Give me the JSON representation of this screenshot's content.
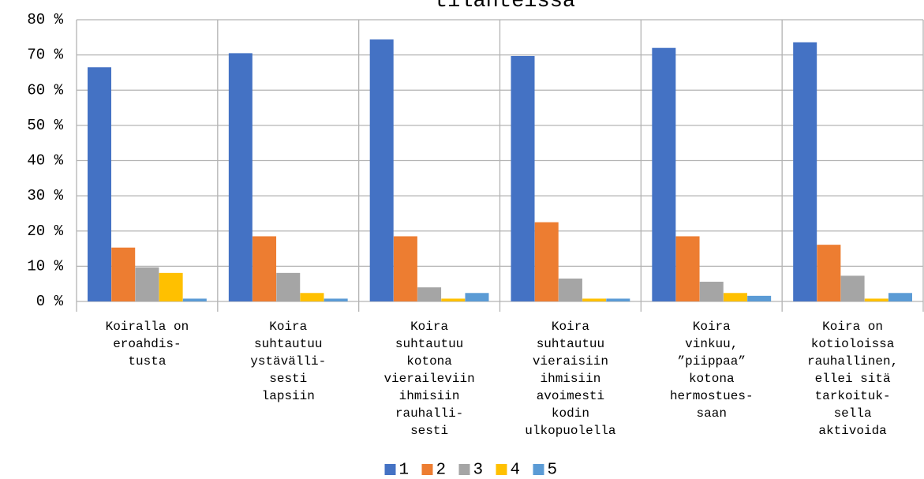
{
  "chart_data": {
    "type": "bar",
    "title": "tilanteissa",
    "categories": [
      [
        "Koiralla on",
        "eroahdis-",
        "tusta"
      ],
      [
        "Koira",
        "suhtautuu",
        "ystävälli-",
        "sesti",
        "lapsiin"
      ],
      [
        "Koira",
        "suhtautuu",
        "kotona",
        "vieraileviin",
        "ihmisiin",
        "rauhalli-",
        "sesti"
      ],
      [
        "Koira",
        "suhtautuu",
        "vieraisiin",
        "ihmisiin",
        "avoimesti",
        "kodin",
        "ulkopuolella"
      ],
      [
        "Koira",
        "vinkuu,",
        "”piippaa”",
        "kotona",
        "hermostues-",
        "saan"
      ],
      [
        "Koira on",
        "kotioloissa",
        "rauhallinen,",
        "ellei sitä",
        "tarkoituk-",
        "sella",
        "aktivoida"
      ]
    ],
    "series": [
      {
        "name": "1",
        "color": "#4472c4",
        "values": [
          66.5,
          70.5,
          74.4,
          69.7,
          72.0,
          73.6
        ]
      },
      {
        "name": "2",
        "color": "#ed7d31",
        "values": [
          15.3,
          18.5,
          18.5,
          22.5,
          18.5,
          16.1
        ]
      },
      {
        "name": "3",
        "color": "#a5a5a5",
        "values": [
          9.7,
          8.1,
          4.0,
          6.5,
          5.6,
          7.3
        ]
      },
      {
        "name": "4",
        "color": "#ffc000",
        "values": [
          8.1,
          2.4,
          0.8,
          0.8,
          2.4,
          0.8
        ]
      },
      {
        "name": "5",
        "color": "#5b9bd5",
        "values": [
          0.8,
          0.8,
          2.4,
          0.8,
          1.6,
          2.4
        ]
      }
    ],
    "ylim": [
      0,
      80
    ],
    "yticks": [
      {
        "value": 0,
        "label": "0 %"
      },
      {
        "value": 10,
        "label": "10 %"
      },
      {
        "value": 20,
        "label": "20 %"
      },
      {
        "value": 30,
        "label": "30 %"
      },
      {
        "value": 40,
        "label": "40 %"
      },
      {
        "value": 50,
        "label": "50 %"
      },
      {
        "value": 60,
        "label": "60 %"
      },
      {
        "value": 70,
        "label": "70 %"
      },
      {
        "value": 80,
        "label": "80 %"
      }
    ],
    "grid": true,
    "legend": "bottom"
  }
}
